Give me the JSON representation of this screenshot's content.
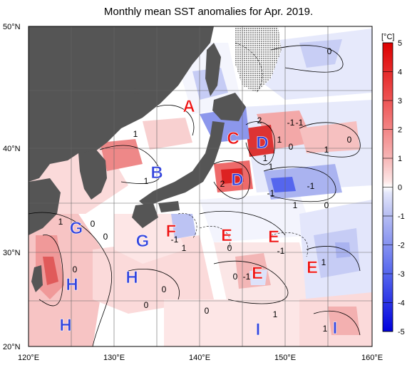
{
  "title": "Monthly mean SST anomalies for Apr. 2019.",
  "axes": {
    "lat_labels": [
      "50°N",
      "40°N",
      "30°N",
      "20°N"
    ],
    "lon_labels": [
      "120°E",
      "130°E",
      "140°E",
      "150°E",
      "160°E"
    ]
  },
  "colorbar": {
    "unit": "[°C]",
    "ticks": [
      "5",
      "4",
      "3",
      "2",
      "1",
      "0",
      "-1",
      "-2",
      "-3",
      "-4",
      "-5"
    ]
  },
  "regions": [
    {
      "id": "A",
      "label": "A",
      "color": "#ee1111"
    },
    {
      "id": "B",
      "label": "B",
      "color": "#3344dd"
    },
    {
      "id": "C",
      "label": "C",
      "color": "#ee1111"
    },
    {
      "id": "D1",
      "label": "D",
      "color": "#3344dd"
    },
    {
      "id": "D2",
      "label": "D",
      "color": "#3344dd"
    },
    {
      "id": "F",
      "label": "F",
      "color": "#ee1111"
    },
    {
      "id": "G1",
      "label": "G",
      "color": "#3344dd"
    },
    {
      "id": "G2",
      "label": "G",
      "color": "#3344dd"
    },
    {
      "id": "E1",
      "label": "E",
      "color": "#ee1111"
    },
    {
      "id": "E2",
      "label": "E",
      "color": "#ee1111"
    },
    {
      "id": "E3",
      "label": "E",
      "color": "#ee1111"
    },
    {
      "id": "E4",
      "label": "E",
      "color": "#ee1111"
    },
    {
      "id": "H1",
      "label": "H",
      "color": "#3344dd"
    },
    {
      "id": "H2",
      "label": "H",
      "color": "#3344dd"
    },
    {
      "id": "H3",
      "label": "H",
      "color": "#3344dd"
    },
    {
      "id": "I1",
      "label": "I",
      "color": "#3344dd"
    },
    {
      "id": "I2",
      "label": "I",
      "color": "#3344dd"
    }
  ],
  "contour_labels": [
    "0",
    "1",
    "-1",
    "1",
    "0",
    "1",
    "2",
    "1",
    "0",
    "-1",
    "1",
    "2",
    "-1",
    "-1",
    "0",
    "1",
    "1",
    "0",
    "0",
    "-1",
    "1",
    "0",
    "-1",
    "1",
    "0",
    "-1",
    "1",
    "0",
    "0",
    "0",
    "0",
    "1",
    "1"
  ]
}
